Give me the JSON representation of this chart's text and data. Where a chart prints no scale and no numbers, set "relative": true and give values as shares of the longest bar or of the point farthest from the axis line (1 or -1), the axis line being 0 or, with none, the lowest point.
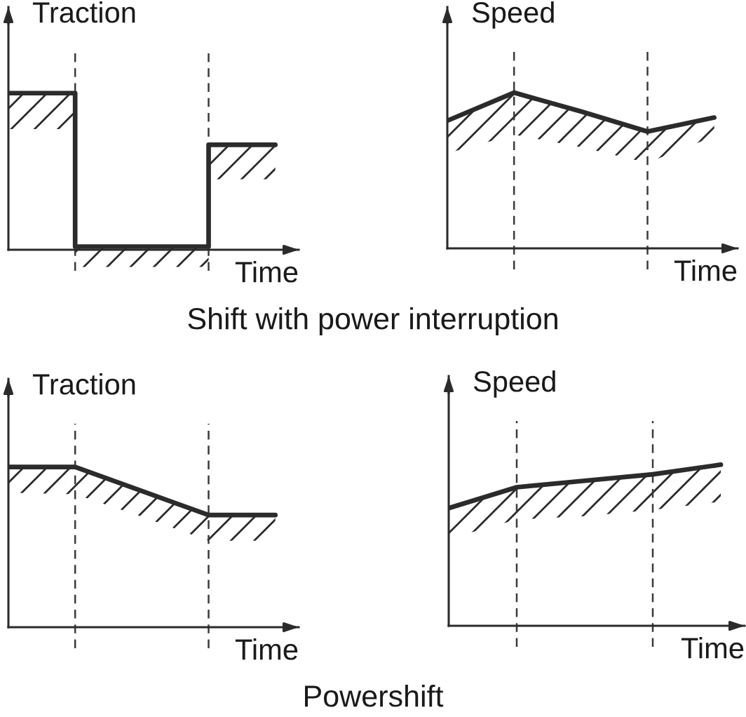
{
  "chart_data": [
    {
      "type": "step",
      "relative": true,
      "ylabel": "Traction",
      "xlabel": "Time",
      "categories": [
        null,
        null,
        null,
        null,
        null
      ],
      "series": [
        {
          "color": "#2b2b2b",
          "values": [
            1,
            0.02,
            0.02,
            0.67,
            0.67
          ],
          "lower": [
            0.77,
            -0.11,
            -0.11,
            0.45,
            0.45
          ],
          "upper": [
            1,
            0.02,
            0.02,
            0.67,
            0.67
          ]
        }
      ],
      "annotations": [
        "Shift with power interruption"
      ]
    },
    {
      "type": "line",
      "relative": true,
      "ylabel": "Speed",
      "xlabel": "Time",
      "categories": [
        null,
        null,
        null,
        null,
        null
      ],
      "series": [
        {
          "color": "#2b2b2b",
          "values": [
            0.82,
            1,
            0.88,
            0.75,
            0.84
          ],
          "lower": [
            0.61,
            0.73,
            0.65,
            0.55,
            0.72
          ],
          "upper": [
            0.82,
            1,
            0.88,
            0.75,
            0.84
          ]
        }
      ]
    },
    {
      "type": "line",
      "relative": true,
      "ylabel": "Traction",
      "xlabel": "Time",
      "categories": [
        null,
        null,
        null,
        null,
        null
      ],
      "series": [
        {
          "color": "#2b2b2b",
          "values": [
            1,
            1,
            0.85,
            0.7,
            0.7
          ],
          "lower": [
            0.84,
            0.83,
            0.69,
            0.54,
            0.54
          ],
          "upper": [
            1,
            1,
            0.85,
            0.7,
            0.7
          ]
        }
      ],
      "annotations": [
        "Powershift"
      ]
    },
    {
      "type": "line",
      "relative": true,
      "ylabel": "Speed",
      "xlabel": "Time",
      "categories": [
        null,
        null,
        null,
        null,
        null
      ],
      "series": [
        {
          "color": "#2b2b2b",
          "values": [
            0.73,
            0.86,
            0.9,
            0.94,
            1
          ],
          "lower": [
            0.54,
            0.66,
            0.68,
            0.72,
            0.77
          ],
          "upper": [
            0.73,
            0.86,
            0.9,
            0.94,
            1
          ]
        }
      ]
    }
  ]
}
